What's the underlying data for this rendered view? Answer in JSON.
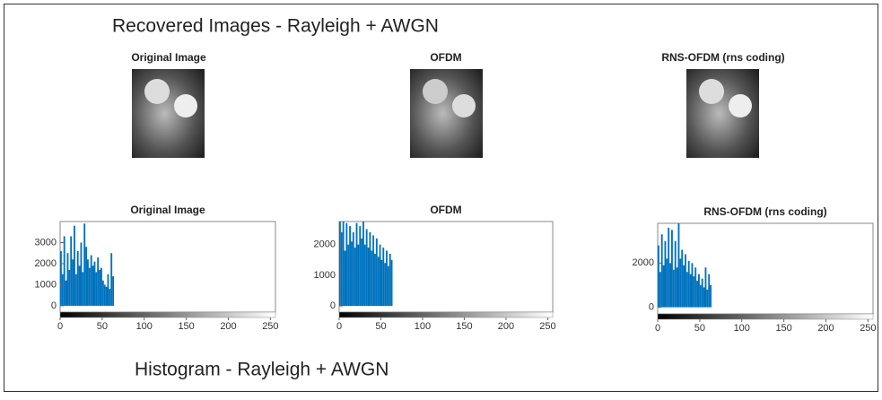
{
  "header": {
    "title": "Recovered Images - Rayleigh + AWGN"
  },
  "images": [
    {
      "title": "Original Image"
    },
    {
      "title": "OFDM"
    },
    {
      "title": "RNS-OFDM (rns coding)"
    }
  ],
  "footer": {
    "title": "Histogram - Rayleigh + AWGN"
  },
  "chart_data": [
    {
      "type": "histogram",
      "title": "Original Image",
      "color": "#0072bd",
      "bins": [
        0,
        2,
        4,
        6,
        8,
        10,
        12,
        14,
        16,
        18,
        20,
        22,
        24,
        26,
        28,
        30,
        32,
        34,
        36,
        38,
        40,
        42,
        44,
        46,
        48,
        50,
        52,
        54,
        56,
        58,
        60,
        62,
        64
      ],
      "values": [
        2600,
        1500,
        3300,
        1200,
        2500,
        1700,
        3300,
        2200,
        3800,
        1500,
        2600,
        1900,
        3000,
        1600,
        3900,
        2800,
        2200,
        1800,
        2400,
        1900,
        2100,
        1600,
        2300,
        1700,
        1800,
        1200,
        1000,
        900,
        1500,
        800,
        2500,
        1400
      ],
      "xlim": [
        0,
        256
      ],
      "xticks": [
        0,
        50,
        100,
        150,
        200,
        250
      ],
      "ylim": [
        -300,
        4000
      ],
      "yticks": [
        0,
        1000,
        2000,
        3000
      ]
    },
    {
      "type": "histogram",
      "title": "OFDM",
      "color": "#0072bd",
      "bins": [
        0,
        2,
        4,
        6,
        8,
        10,
        12,
        14,
        16,
        18,
        20,
        22,
        24,
        26,
        28,
        30,
        32,
        34,
        36,
        38,
        40,
        42,
        44,
        46,
        48,
        50,
        52,
        54,
        56,
        58,
        60,
        62,
        64
      ],
      "values": [
        2750,
        2400,
        2750,
        1800,
        2700,
        2000,
        2600,
        2100,
        2400,
        1900,
        2700,
        2000,
        2600,
        2200,
        2750,
        2000,
        2500,
        1900,
        2400,
        1800,
        2300,
        1700,
        2200,
        1600,
        2000,
        1500,
        1900,
        1400,
        1800,
        1300,
        1700,
        1500
      ],
      "xlim": [
        0,
        256
      ],
      "xticks": [
        0,
        50,
        100,
        150,
        200,
        250
      ],
      "ylim": [
        -200,
        2750
      ],
      "yticks": [
        0,
        1000,
        2000
      ]
    },
    {
      "type": "histogram",
      "title": "RNS-OFDM (rns coding)",
      "color": "#0072bd",
      "bins": [
        0,
        2,
        4,
        6,
        8,
        10,
        12,
        14,
        16,
        18,
        20,
        22,
        24,
        26,
        28,
        30,
        32,
        34,
        36,
        38,
        40,
        42,
        44,
        46,
        48,
        50,
        52,
        54,
        56,
        58,
        60,
        62,
        64
      ],
      "values": [
        2800,
        1600,
        3300,
        1900,
        3000,
        2200,
        3600,
        2000,
        3500,
        1700,
        3000,
        1800,
        3800,
        2200,
        2600,
        1900,
        2400,
        1600,
        2100,
        1500,
        2000,
        1400,
        1800,
        1200,
        1500,
        1000,
        1300,
        900,
        1800,
        800,
        1500,
        1000
      ],
      "xlim": [
        0,
        256
      ],
      "xticks": [
        0,
        50,
        100,
        150,
        200,
        250
      ],
      "ylim": [
        -300,
        3800
      ],
      "yticks": [
        0,
        2000
      ]
    }
  ]
}
